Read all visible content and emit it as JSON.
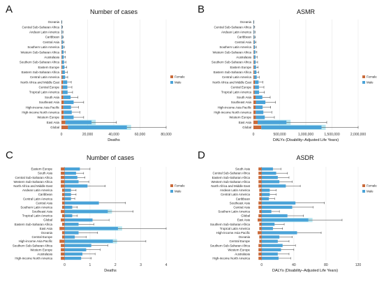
{
  "panels": [
    {
      "letter": "A",
      "title": "Number of cases",
      "xlabel": "Deaths",
      "tick_labels": [
        "0",
        "20,000",
        "40,000",
        "60,000",
        "80,000"
      ],
      "legend": [
        "Female",
        "Male"
      ]
    },
    {
      "letter": "B",
      "title": "ASMR",
      "xlabel": "DALYs (Disability–Adjusted Life Years)",
      "tick_labels": [
        "0",
        "500,000",
        "1,000,000",
        "1,500,000",
        "2,000,000"
      ],
      "legend": [
        "Female",
        "Male"
      ]
    },
    {
      "letter": "C",
      "title": "Number of cases",
      "xlabel": "Deaths",
      "tick_labels": [
        "0",
        "1",
        "2",
        "3",
        "4"
      ],
      "legend": [
        "Female",
        "Male"
      ]
    },
    {
      "letter": "D",
      "title": "ASDR",
      "xlabel": "DALYs (Disability–Adjusted Life Years)",
      "tick_labels": [
        "0",
        "40",
        "80",
        "120"
      ],
      "legend": [
        "Female",
        "Male"
      ]
    }
  ],
  "colors": {
    "female": "#c96a3a",
    "male": "#4aa3d8",
    "male_highlight": "#7fd4e6",
    "grid": "#e6e6e6",
    "errorbar": "#333333"
  },
  "chart_data": [
    {
      "type": "bar",
      "title": "Number of cases",
      "xlabel": "Deaths",
      "xlim": [
        0,
        80000
      ],
      "orientation": "horizontal",
      "stacked": true,
      "categories": [
        "Oceania",
        "Central Sub-Saharan Africa",
        "Andean Latin America",
        "Caribbean",
        "Central Asia",
        "Southern Latin America",
        "Western Sub-Saharan Africa",
        "Australasia",
        "Southern Sub-Saharan Africa",
        "Eastern Europe",
        "Eastern Sub-Saharan Africa",
        "Central Latin America",
        "North Africa and Middle East",
        "Central Europe",
        "Tropical Latin America",
        "South Asia",
        "Southeast Asia",
        "High-income Asia Pacific",
        "High-income North America",
        "Western Europe",
        "East Asia",
        "Global"
      ],
      "series": [
        {
          "name": "Female",
          "values": [
            50,
            150,
            200,
            250,
            300,
            350,
            400,
            450,
            500,
            600,
            700,
            800,
            1200,
            1000,
            900,
            1500,
            1800,
            1500,
            1700,
            1800,
            3000,
            5000
          ]
        },
        {
          "name": "Male",
          "values": [
            100,
            350,
            500,
            600,
            900,
            1000,
            1200,
            1300,
            1500,
            1700,
            1900,
            2000,
            3200,
            3500,
            3800,
            5500,
            7500,
            5800,
            6200,
            7500,
            20000,
            45000
          ]
        }
      ],
      "error_upper": [
        300,
        900,
        1200,
        1500,
        2000,
        2200,
        2800,
        3000,
        3400,
        4000,
        4500,
        4800,
        7500,
        8000,
        8500,
        12500,
        17000,
        13000,
        14000,
        17000,
        42000,
        80000
      ]
    },
    {
      "type": "bar",
      "title": "ASMR",
      "xlabel": "DALYs (Disability–Adjusted Life Years)",
      "xlim": [
        0,
        2000000
      ],
      "orientation": "horizontal",
      "stacked": true,
      "categories": [
        "Oceania",
        "Central Sub-Saharan Africa",
        "Andean Latin America",
        "Caribbean",
        "Central Asia",
        "Southern Latin America",
        "Western Sub-Saharan Africa",
        "Australasia",
        "Southern Sub-Saharan Africa",
        "Eastern Europe",
        "Eastern Sub-Saharan Africa",
        "Central Latin America",
        "North Africa and Middle East",
        "Central Europe",
        "Tropical Latin America",
        "South Asia",
        "Southeast Asia",
        "High-income Asia Pacific",
        "High-income North America",
        "Western Europe",
        "East Asia",
        "Global"
      ],
      "series": [
        {
          "name": "Female",
          "values": [
            1500,
            4000,
            5000,
            6000,
            8000,
            9000,
            10000,
            11000,
            12000,
            14000,
            16000,
            18000,
            28000,
            25000,
            22000,
            40000,
            48000,
            40000,
            44000,
            46000,
            80000,
            150000
          ]
        },
        {
          "name": "Male",
          "values": [
            3000,
            9000,
            12000,
            14000,
            20000,
            22000,
            26000,
            28000,
            30000,
            36000,
            40000,
            44000,
            70000,
            80000,
            85000,
            130000,
            180000,
            135000,
            145000,
            170000,
            550000,
            1150000
          ]
        }
      ],
      "error_upper": [
        8000,
        25000,
        32000,
        38000,
        50000,
        55000,
        65000,
        70000,
        80000,
        90000,
        100000,
        110000,
        180000,
        200000,
        210000,
        320000,
        420000,
        330000,
        350000,
        400000,
        1400000,
        2200000
      ]
    },
    {
      "type": "bar",
      "title": "Number of cases",
      "xlabel": "Deaths",
      "xlim": [
        -0.4,
        4
      ],
      "orientation": "horizontal",
      "categories": [
        "Eastern Europe",
        "South Asia",
        "Central Sub-Saharan Africa",
        "Western Sub-Saharan Africa",
        "North Africa and Middle East",
        "Andean Latin America",
        "Caribbean",
        "Central Latin America",
        "Central Asia",
        "Southern Latin America",
        "Southeast Asia",
        "Tropical Latin America",
        "Global",
        "Eastern Sub-Saharan Africa",
        "East Asia",
        "Oceania",
        "Central Europe",
        "High-income Asia Pacific",
        "Southern Sub-Saharan Africa",
        "Western Europe",
        "Australasia",
        "High-income North America"
      ],
      "series": [
        {
          "name": "Female",
          "values": [
            -0.15,
            -0.15,
            -0.15,
            -0.15,
            -0.15,
            -0.1,
            -0.1,
            -0.1,
            -0.1,
            -0.1,
            -0.15,
            -0.1,
            -0.15,
            -0.1,
            -0.2,
            -0.1,
            -0.1,
            -0.2,
            -0.15,
            -0.15,
            -0.15,
            -0.15
          ]
        },
        {
          "name": "Male",
          "values": [
            0.6,
            0.45,
            0.5,
            0.55,
            0.9,
            0.25,
            0.25,
            0.25,
            1.35,
            0.3,
            1.7,
            0.3,
            1.1,
            0.55,
            2.1,
            0.55,
            0.4,
            1.9,
            1.05,
            0.85,
            0.7,
            0.65
          ]
        }
      ],
      "error_upper": [
        1.0,
        0.75,
        0.8,
        0.95,
        1.6,
        0.45,
        0.45,
        0.4,
        2.4,
        0.5,
        2.7,
        0.5,
        1.75,
        1.15,
        4.0,
        1.3,
        0.85,
        3.2,
        1.7,
        1.4,
        1.2,
        1.05
      ]
    },
    {
      "type": "bar",
      "title": "ASDR",
      "xlabel": "DALYs (Disability–Adjusted Life Years)",
      "xlim": [
        -12,
        120
      ],
      "orientation": "horizontal",
      "categories": [
        "South Asia",
        "Central Sub-Saharan Africa",
        "Eastern Sub-Saharan Africa",
        "Western Sub-Saharan Africa",
        "North Africa and Middle East",
        "Andean Latin America",
        "Central Latin America",
        "Caribbean",
        "Southeast Asia",
        "Central Asia",
        "Southern Latin America",
        "Global",
        "East Asia",
        "Southern Sub-Saharan Africa",
        "Tropical Latin America",
        "High-income Asia Pacific",
        "Oceania",
        "Central Europe",
        "Southern Sub-Saharan Africa",
        "Western Europe",
        "Australasia",
        "High-income North America"
      ],
      "series": [
        {
          "name": "Female",
          "values": [
            -4,
            -4,
            -4,
            -4,
            -4,
            -3,
            -3,
            -3,
            -4,
            -4,
            -3,
            -4,
            -5,
            -3,
            -3,
            -5,
            -3,
            -3,
            -4,
            -4,
            -4,
            -4
          ]
        },
        {
          "name": "Male",
          "values": [
            14,
            18,
            20,
            22,
            30,
            10,
            10,
            9,
            42,
            38,
            12,
            32,
            58,
            16,
            14,
            44,
            22,
            20,
            26,
            24,
            20,
            21
          ]
        }
      ],
      "error_upper": [
        24,
        32,
        34,
        38,
        48,
        18,
        18,
        16,
        78,
        64,
        22,
        52,
        100,
        28,
        26,
        74,
        38,
        34,
        42,
        40,
        34,
        36
      ]
    }
  ]
}
